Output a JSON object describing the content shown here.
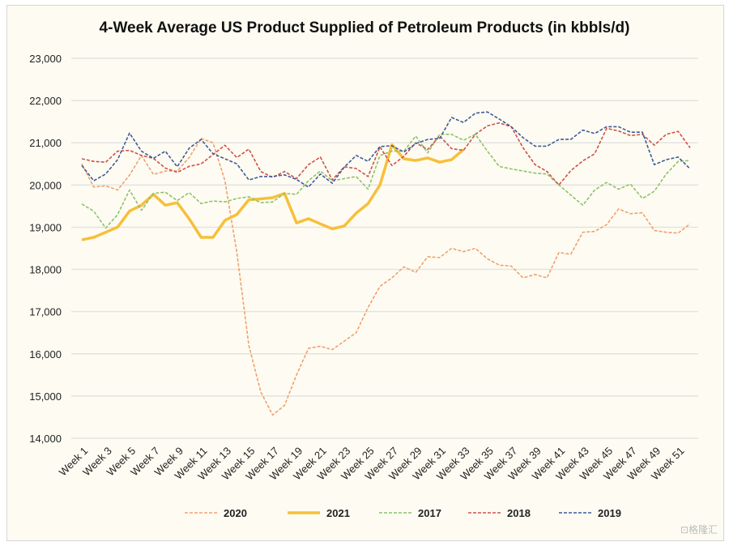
{
  "chart_data": {
    "type": "line",
    "title": "4-Week Average US Product Supplied of Petroleum Products (in kbbls/d)",
    "xlabel": "",
    "ylabel": "",
    "ylim": [
      14000,
      23000
    ],
    "yticks": [
      14000,
      15000,
      16000,
      17000,
      18000,
      19000,
      20000,
      21000,
      22000,
      23000
    ],
    "ytick_labels": [
      "14,000",
      "15,000",
      "16,000",
      "17,000",
      "18,000",
      "19,000",
      "20,000",
      "21,000",
      "22,000",
      "23,000"
    ],
    "xtick_labels": [
      "Week 1",
      "Week 3",
      "Week 5",
      "Week 7",
      "Week 9",
      "Week 11",
      "Week 13",
      "Week 15",
      "Week 17",
      "Week 19",
      "Week 21",
      "Week 23",
      "Week 25",
      "Week 27",
      "Week 29",
      "Week 31",
      "Week 33",
      "Week 35",
      "Week 37",
      "Week 39",
      "Week 41",
      "Week 43",
      "Week 45",
      "Week 47",
      "Week 49",
      "Week 51"
    ],
    "grid": "horizontal",
    "legend_placement": "bottom",
    "series": [
      {
        "name": "2020",
        "color": "#f0a070",
        "style": "dashed",
        "values": [
          20500,
          19950,
          19980,
          19880,
          20230,
          20700,
          20250,
          20330,
          20330,
          20650,
          21100,
          21000,
          20100,
          18400,
          16200,
          15100,
          14550,
          14780,
          15500,
          16130,
          16180,
          16100,
          16300,
          16500,
          17100,
          17600,
          17800,
          18060,
          17930,
          18300,
          18280,
          18500,
          18420,
          18500,
          18250,
          18100,
          18080,
          17800,
          17880,
          17800,
          18400,
          18360,
          18880,
          18900,
          19060,
          19430,
          19320,
          19340,
          18920,
          18880,
          18860,
          19080
        ]
      },
      {
        "name": "2021",
        "color": "#f7bf3a",
        "style": "solid",
        "values": [
          18700,
          18760,
          18880,
          19000,
          19380,
          19520,
          19780,
          19520,
          19580,
          19200,
          18760,
          18760,
          19160,
          19300,
          19650,
          19670,
          19700,
          19800,
          19100,
          19200,
          19080,
          18960,
          19030,
          19330,
          19560,
          20000,
          20950,
          20620,
          20580,
          20640,
          20540,
          20600,
          20840
        ]
      },
      {
        "name": "2017",
        "color": "#8cc26a",
        "style": "dashed",
        "values": [
          19550,
          19380,
          18980,
          19300,
          19880,
          19400,
          19800,
          19830,
          19630,
          19820,
          19560,
          19620,
          19600,
          19680,
          19720,
          19580,
          19600,
          19800,
          19780,
          20100,
          20330,
          20100,
          20150,
          20200,
          19900,
          20700,
          20800,
          20800,
          21160,
          20760,
          21200,
          21200,
          21060,
          21200,
          20800,
          20440,
          20380,
          20330,
          20280,
          20260,
          20000,
          19760,
          19520,
          19880,
          20060,
          19900,
          20020,
          19680,
          19850,
          20260,
          20560,
          20580
        ]
      },
      {
        "name": "2018",
        "color": "#d0504a",
        "style": "dashed",
        "values": [
          20620,
          20560,
          20540,
          20800,
          20820,
          20700,
          20630,
          20400,
          20300,
          20440,
          20500,
          20720,
          20940,
          20650,
          20850,
          20320,
          20180,
          20320,
          20150,
          20480,
          20660,
          20120,
          20430,
          20390,
          20200,
          20900,
          20460,
          20680,
          21000,
          20840,
          21160,
          20860,
          20820,
          21200,
          21400,
          21470,
          21380,
          20880,
          20480,
          20320,
          20000,
          20340,
          20570,
          20740,
          21340,
          21280,
          21170,
          21200,
          20940,
          21200,
          21270,
          20880
        ]
      },
      {
        "name": "2019",
        "color": "#3f5a9a",
        "style": "dashed",
        "values": [
          20460,
          20100,
          20260,
          20600,
          21230,
          20800,
          20630,
          20800,
          20430,
          20870,
          21080,
          20740,
          20620,
          20500,
          20120,
          20200,
          20200,
          20240,
          20130,
          19950,
          20260,
          20040,
          20420,
          20700,
          20560,
          20910,
          20930,
          20780,
          20980,
          21080,
          21100,
          21600,
          21480,
          21700,
          21730,
          21560,
          21380,
          21120,
          20920,
          20920,
          21080,
          21080,
          21300,
          21220,
          21380,
          21380,
          21250,
          21250,
          20480,
          20600,
          20660,
          20380
        ]
      }
    ]
  },
  "watermark": "格隆汇"
}
